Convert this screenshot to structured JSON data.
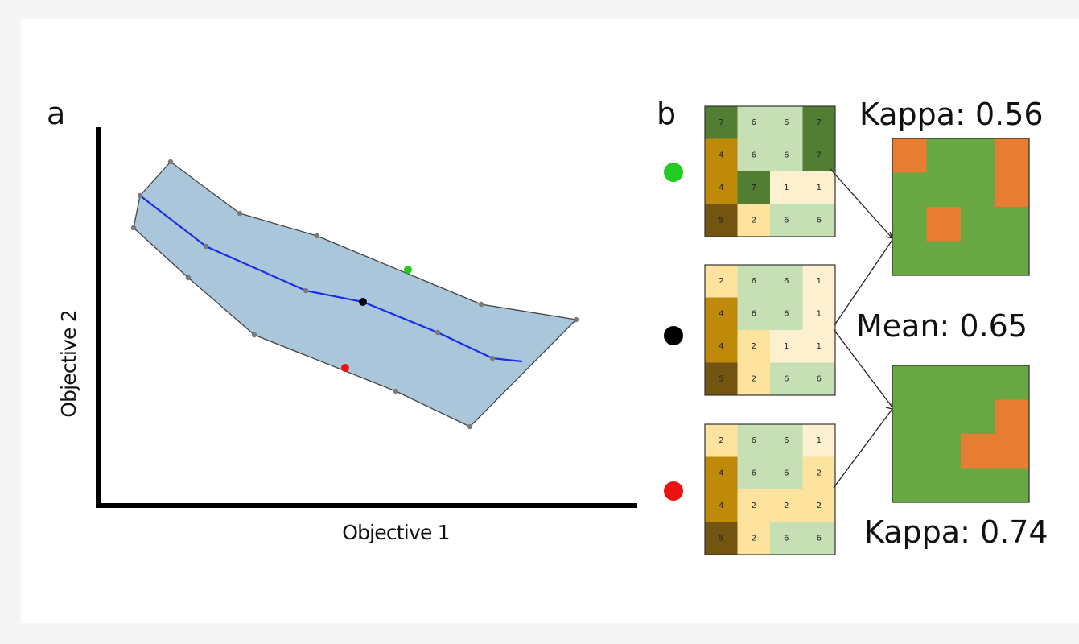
{
  "panel_a": {
    "label": "a",
    "xlabel": "Objective 1",
    "ylabel": "Objective 2",
    "colors": {
      "front_fill": "#a9c6da",
      "median_line": "#1a2ee8",
      "envelope_point": "#7a7a7a",
      "green_point": "#22cc22",
      "black_point": "#000000",
      "red_point": "#ee1111"
    }
  },
  "panel_b": {
    "label": "b",
    "kappa_top": "Kappa: 0.56",
    "mean": "Mean: 0.65",
    "kappa_bottom": "Kappa: 0.74",
    "markers": [
      "green",
      "black",
      "red"
    ],
    "category_colors": {
      "1": "#fdf0cf",
      "2": "#fde39e",
      "4": "#bf8a09",
      "5": "#735410",
      "6": "#c6dfb4",
      "7": "#527e33"
    },
    "maps": {
      "green": [
        [
          7,
          6,
          6,
          7
        ],
        [
          4,
          6,
          6,
          7
        ],
        [
          4,
          7,
          1,
          1
        ],
        [
          5,
          2,
          6,
          6
        ]
      ],
      "black": [
        [
          2,
          6,
          6,
          1
        ],
        [
          4,
          6,
          6,
          1
        ],
        [
          4,
          2,
          1,
          1
        ],
        [
          5,
          2,
          6,
          6
        ]
      ],
      "red": [
        [
          2,
          6,
          6,
          1
        ],
        [
          4,
          6,
          6,
          2
        ],
        [
          4,
          2,
          2,
          2
        ],
        [
          5,
          2,
          6,
          6
        ]
      ]
    },
    "comparison_colors": {
      "agree": "#69a742",
      "disagree": "#e77d33"
    },
    "comparison_top": [
      [
        1,
        0,
        0,
        1
      ],
      [
        0,
        0,
        0,
        1
      ],
      [
        0,
        1,
        0,
        0
      ],
      [
        0,
        0,
        0,
        0
      ]
    ],
    "comparison_bottom": [
      [
        0,
        0,
        0,
        0
      ],
      [
        0,
        0,
        0,
        1
      ],
      [
        0,
        0,
        1,
        1
      ],
      [
        0,
        0,
        0,
        0
      ]
    ]
  }
}
